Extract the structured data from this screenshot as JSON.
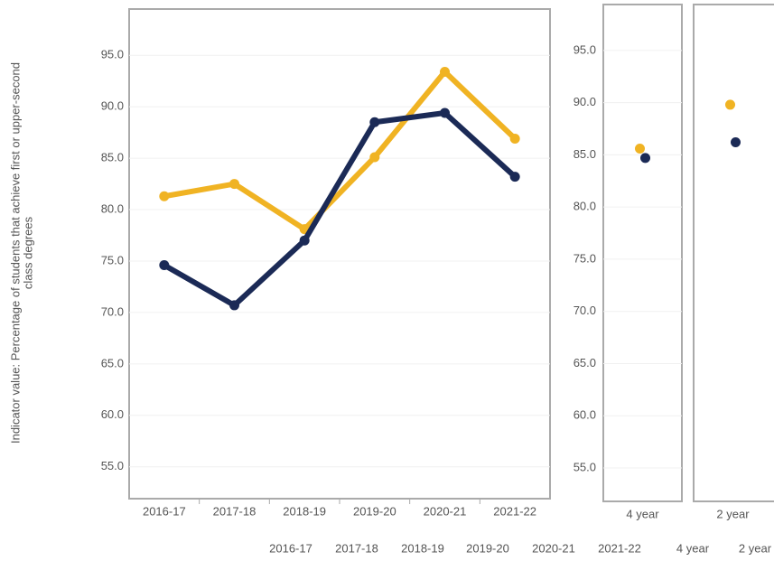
{
  "chart_data": [
    {
      "type": "line",
      "y_label": [
        "Indicator value: Percentage of students that achieve first or upper-second",
        "class degrees"
      ],
      "categories": [
        "2016-17",
        "2017-18",
        "2018-19",
        "2019-20",
        "2020-21",
        "2021-22"
      ],
      "series": [
        {
          "color": "#f0b323",
          "values": [
            81.3,
            82.5,
            78.1,
            85.1,
            93.4,
            86.9
          ]
        },
        {
          "color": "#1b2a56",
          "values": [
            74.6,
            70.7,
            77.0,
            88.5,
            89.4,
            83.2
          ]
        }
      ],
      "ylim": [
        51.9,
        99.5
      ],
      "yticks": [
        {
          "value": 55,
          "label": "55.0"
        },
        {
          "value": 60,
          "label": "60.0"
        },
        {
          "value": 65,
          "label": "65.0"
        },
        {
          "value": 70,
          "label": "70.0"
        },
        {
          "value": 75,
          "label": "75.0"
        },
        {
          "value": 80,
          "label": "80.0"
        },
        {
          "value": 85,
          "label": "85.0"
        },
        {
          "value": 90,
          "label": "90.0"
        },
        {
          "value": 95,
          "label": "95.0"
        }
      ],
      "grid": true
    },
    {
      "type": "dot",
      "categories": [
        "4 year"
      ],
      "series": [
        {
          "color": "#f0b323",
          "values": [
            85.6
          ]
        },
        {
          "color": "#1b2a56",
          "values": [
            84.7
          ]
        }
      ],
      "ylim": [
        51.8,
        99.4
      ],
      "yticks": [
        {
          "value": 55,
          "label": "55.0"
        },
        {
          "value": 60,
          "label": "60.0"
        },
        {
          "value": 65,
          "label": "65.0"
        },
        {
          "value": 70,
          "label": "70.0"
        },
        {
          "value": 75,
          "label": "75.0"
        },
        {
          "value": 80,
          "label": "80.0"
        },
        {
          "value": 85,
          "label": "85.0"
        },
        {
          "value": 90,
          "label": "90.0"
        },
        {
          "value": 95,
          "label": "95.0"
        }
      ],
      "grid": true
    },
    {
      "type": "dot",
      "categories": [
        "2 year"
      ],
      "series": [
        {
          "color": "#f0b323",
          "values": [
            89.8
          ]
        },
        {
          "color": "#1b2a56",
          "values": [
            86.2
          ]
        }
      ],
      "ylim": [
        51.8,
        99.4
      ],
      "grid": true
    }
  ],
  "footer_labels": [
    "2016-17",
    "2017-18",
    "2018-19",
    "2019-20",
    "2020-21",
    "2021-22",
    "4 year",
    "2 year"
  ]
}
